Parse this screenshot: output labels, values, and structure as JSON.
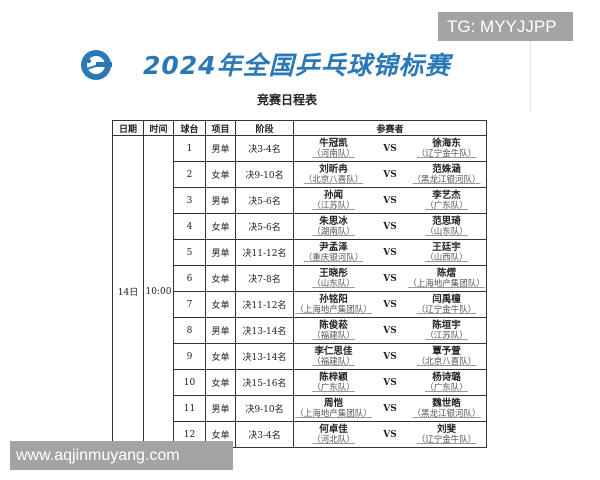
{
  "watermark_top": "TG: MYYJJPP",
  "watermark_bottom": "www.aqjinmuyang.com",
  "header": {
    "title": "2024年全国乒乓球锦标赛",
    "subtitle": "竞赛日程表",
    "accent": "#2a78b6"
  },
  "table": {
    "columns": [
      "日期",
      "时间",
      "球台",
      "项目",
      "阶段",
      "参赛者"
    ],
    "date": "14日",
    "time": "10:00",
    "vs": "VS",
    "rows": [
      {
        "table": "1",
        "event": "男单",
        "stage": "决3-4名",
        "p1": "牛冠凯",
        "t1": "（河南队）",
        "p2": "徐海东",
        "t2": "（辽宁金牛队）"
      },
      {
        "table": "2",
        "event": "女单",
        "stage": "决9-10名",
        "p1": "刘昕冉",
        "t1": "（北京八喜队）",
        "p2": "范姝涵",
        "t2": "（黑龙江银河队）"
      },
      {
        "table": "3",
        "event": "男单",
        "stage": "决5-6名",
        "p1": "孙闻",
        "t1": "（江苏队）",
        "p2": "李艺杰",
        "t2": "（广东队）"
      },
      {
        "table": "4",
        "event": "女单",
        "stage": "决5-6名",
        "p1": "朱思冰",
        "t1": "（湖南队）",
        "p2": "范思琦",
        "t2": "（山东队）"
      },
      {
        "table": "5",
        "event": "男单",
        "stage": "决11-12名",
        "p1": "尹孟泽",
        "t1": "（重庆银河队）",
        "p2": "王廷宇",
        "t2": "（山西队）"
      },
      {
        "table": "6",
        "event": "女单",
        "stage": "决7-8名",
        "p1": "王晓彤",
        "t1": "（山东队）",
        "p2": "陈熠",
        "t2": "（上海地产集团队）"
      },
      {
        "table": "7",
        "event": "女单",
        "stage": "决11-12名",
        "p1": "孙铭阳",
        "t1": "（上海地产集团队）",
        "p2": "闫禹橦",
        "t2": "（辽宁金牛队）"
      },
      {
        "table": "8",
        "event": "男单",
        "stage": "决13-14名",
        "p1": "陈俊菘",
        "t1": "（福建队）",
        "p2": "陈垣宇",
        "t2": "（江苏队）"
      },
      {
        "table": "9",
        "event": "女单",
        "stage": "决13-14名",
        "p1": "李仁思佳",
        "t1": "（福建队）",
        "p2": "覃予萱",
        "t2": "（北京八喜队）"
      },
      {
        "table": "10",
        "event": "女单",
        "stage": "决15-16名",
        "p1": "陈梓颖",
        "t1": "（广东队）",
        "p2": "杨诗璐",
        "t2": "（广东队）"
      },
      {
        "table": "11",
        "event": "男单",
        "stage": "决9-10名",
        "p1": "周恺",
        "t1": "（上海地产集团队）",
        "p2": "魏世皓",
        "t2": "（黑龙江银河队）"
      },
      {
        "table": "12",
        "event": "女单",
        "stage": "决3-4名",
        "p1": "何卓佳",
        "t1": "（河北队）",
        "p2": "刘斐",
        "t2": "（辽宁金牛队）"
      }
    ]
  }
}
